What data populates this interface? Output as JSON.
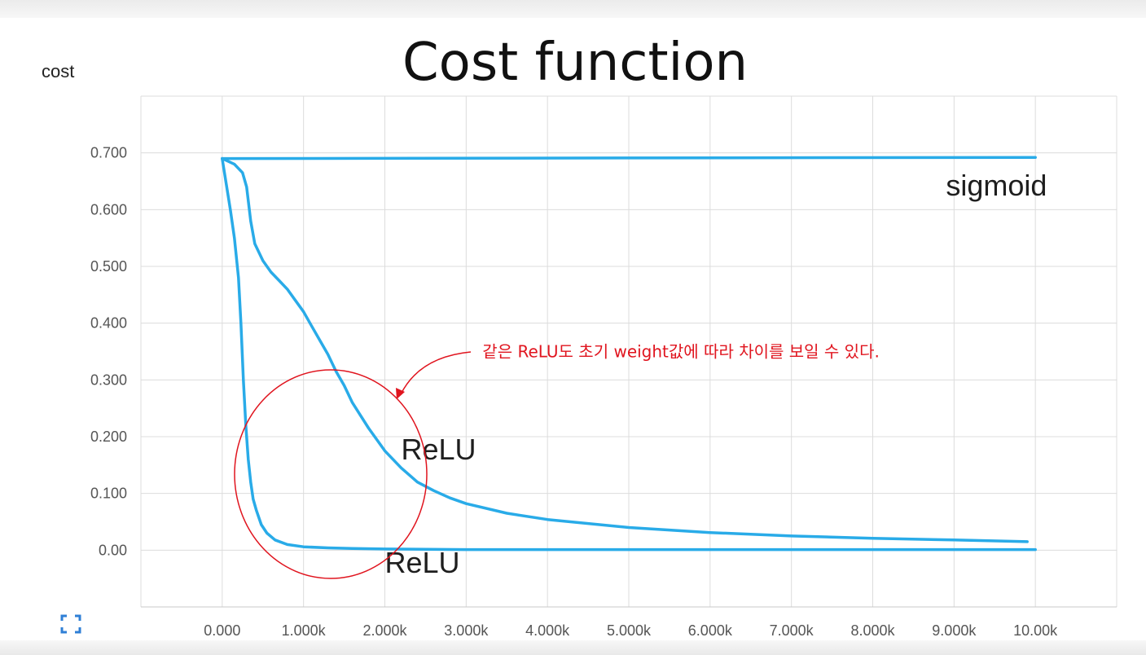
{
  "chart_data": {
    "type": "line",
    "title": "Cost function",
    "ylabel": "cost",
    "xlabel": "",
    "xlim": [
      -1000,
      11000
    ],
    "ylim": [
      -0.1,
      0.8
    ],
    "x_ticks": [
      0,
      1000,
      2000,
      3000,
      4000,
      5000,
      6000,
      7000,
      8000,
      9000,
      10000
    ],
    "x_tick_labels": [
      "0.000",
      "1.000k",
      "2.000k",
      "3.000k",
      "4.000k",
      "5.000k",
      "6.000k",
      "7.000k",
      "8.000k",
      "9.000k",
      "10.00k"
    ],
    "y_ticks": [
      0,
      0.1,
      0.2,
      0.3,
      0.4,
      0.5,
      0.6,
      0.7
    ],
    "y_tick_labels": [
      "0.00",
      "0.100",
      "0.200",
      "0.300",
      "0.400",
      "0.500",
      "0.600",
      "0.700"
    ],
    "grid": true,
    "line_color": "#29abe8",
    "series": [
      {
        "x": [
          0,
          10000
        ],
        "y": [
          0.69,
          0.692
        ]
      },
      {
        "x": [
          0,
          150,
          250,
          300,
          350,
          400,
          500,
          600,
          700,
          800,
          900,
          1000,
          1100,
          1200,
          1300,
          1400,
          1500,
          1600,
          1800,
          2000,
          2200,
          2400,
          2600,
          2800,
          3000,
          3500,
          4000,
          5000,
          6000,
          7000,
          8000,
          9000,
          9900
        ],
        "y": [
          0.69,
          0.68,
          0.665,
          0.64,
          0.58,
          0.54,
          0.51,
          0.49,
          0.475,
          0.46,
          0.44,
          0.42,
          0.395,
          0.37,
          0.345,
          0.315,
          0.29,
          0.26,
          0.215,
          0.175,
          0.145,
          0.12,
          0.105,
          0.092,
          0.082,
          0.065,
          0.054,
          0.04,
          0.031,
          0.025,
          0.021,
          0.018,
          0.015
        ]
      },
      {
        "x": [
          0,
          100,
          150,
          200,
          230,
          260,
          290,
          320,
          350,
          380,
          420,
          480,
          550,
          650,
          800,
          1000,
          1300,
          1600,
          2000,
          3000,
          5000,
          10000
        ],
        "y": [
          0.69,
          0.6,
          0.55,
          0.48,
          0.4,
          0.3,
          0.22,
          0.16,
          0.12,
          0.09,
          0.07,
          0.045,
          0.03,
          0.018,
          0.01,
          0.006,
          0.004,
          0.003,
          0.002,
          0.001,
          0.001,
          0.001
        ]
      }
    ],
    "annotations": [
      {
        "text": "sigmoid",
        "x": 8900,
        "y": 0.625
      },
      {
        "text": "ReLU",
        "x": 2200,
        "y": 0.16
      },
      {
        "text": "ReLU",
        "x": 2000,
        "y": -0.04
      },
      {
        "text": "같은 ReLU도 초기 weight값에 따라 차이를 보일 수 있다.",
        "x": 3200,
        "y": 0.34,
        "color": "#e0141e"
      }
    ]
  },
  "page": {
    "fullscreen_icon": "fullscreen-icon"
  }
}
